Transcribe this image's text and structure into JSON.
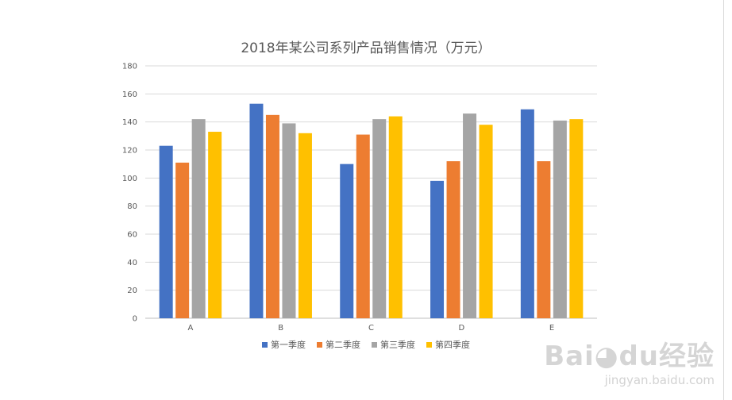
{
  "chart_data": {
    "type": "bar",
    "title": "2018年某公司系列产品销售情况（万元）",
    "categories": [
      "A",
      "B",
      "C",
      "D",
      "E"
    ],
    "series": [
      {
        "name": "第一季度",
        "color": "#4472C4",
        "values": [
          123,
          153,
          110,
          98,
          149
        ]
      },
      {
        "name": "第二季度",
        "color": "#ED7D31",
        "values": [
          111,
          145,
          131,
          112,
          112
        ]
      },
      {
        "name": "第三季度",
        "color": "#A5A5A5",
        "values": [
          142,
          139,
          142,
          146,
          141
        ]
      },
      {
        "name": "第四季度",
        "color": "#FFC000",
        "values": [
          133,
          132,
          144,
          138,
          142
        ]
      }
    ],
    "xlabel": "",
    "ylabel": "",
    "ylim": [
      0,
      180
    ],
    "yticks": [
      0,
      20,
      40,
      60,
      80,
      100,
      120,
      140,
      160,
      180
    ],
    "grid": true,
    "legend_position": "bottom"
  },
  "watermark": {
    "logo_text": "Baidu经验",
    "url": "jingyan.baidu.com"
  }
}
